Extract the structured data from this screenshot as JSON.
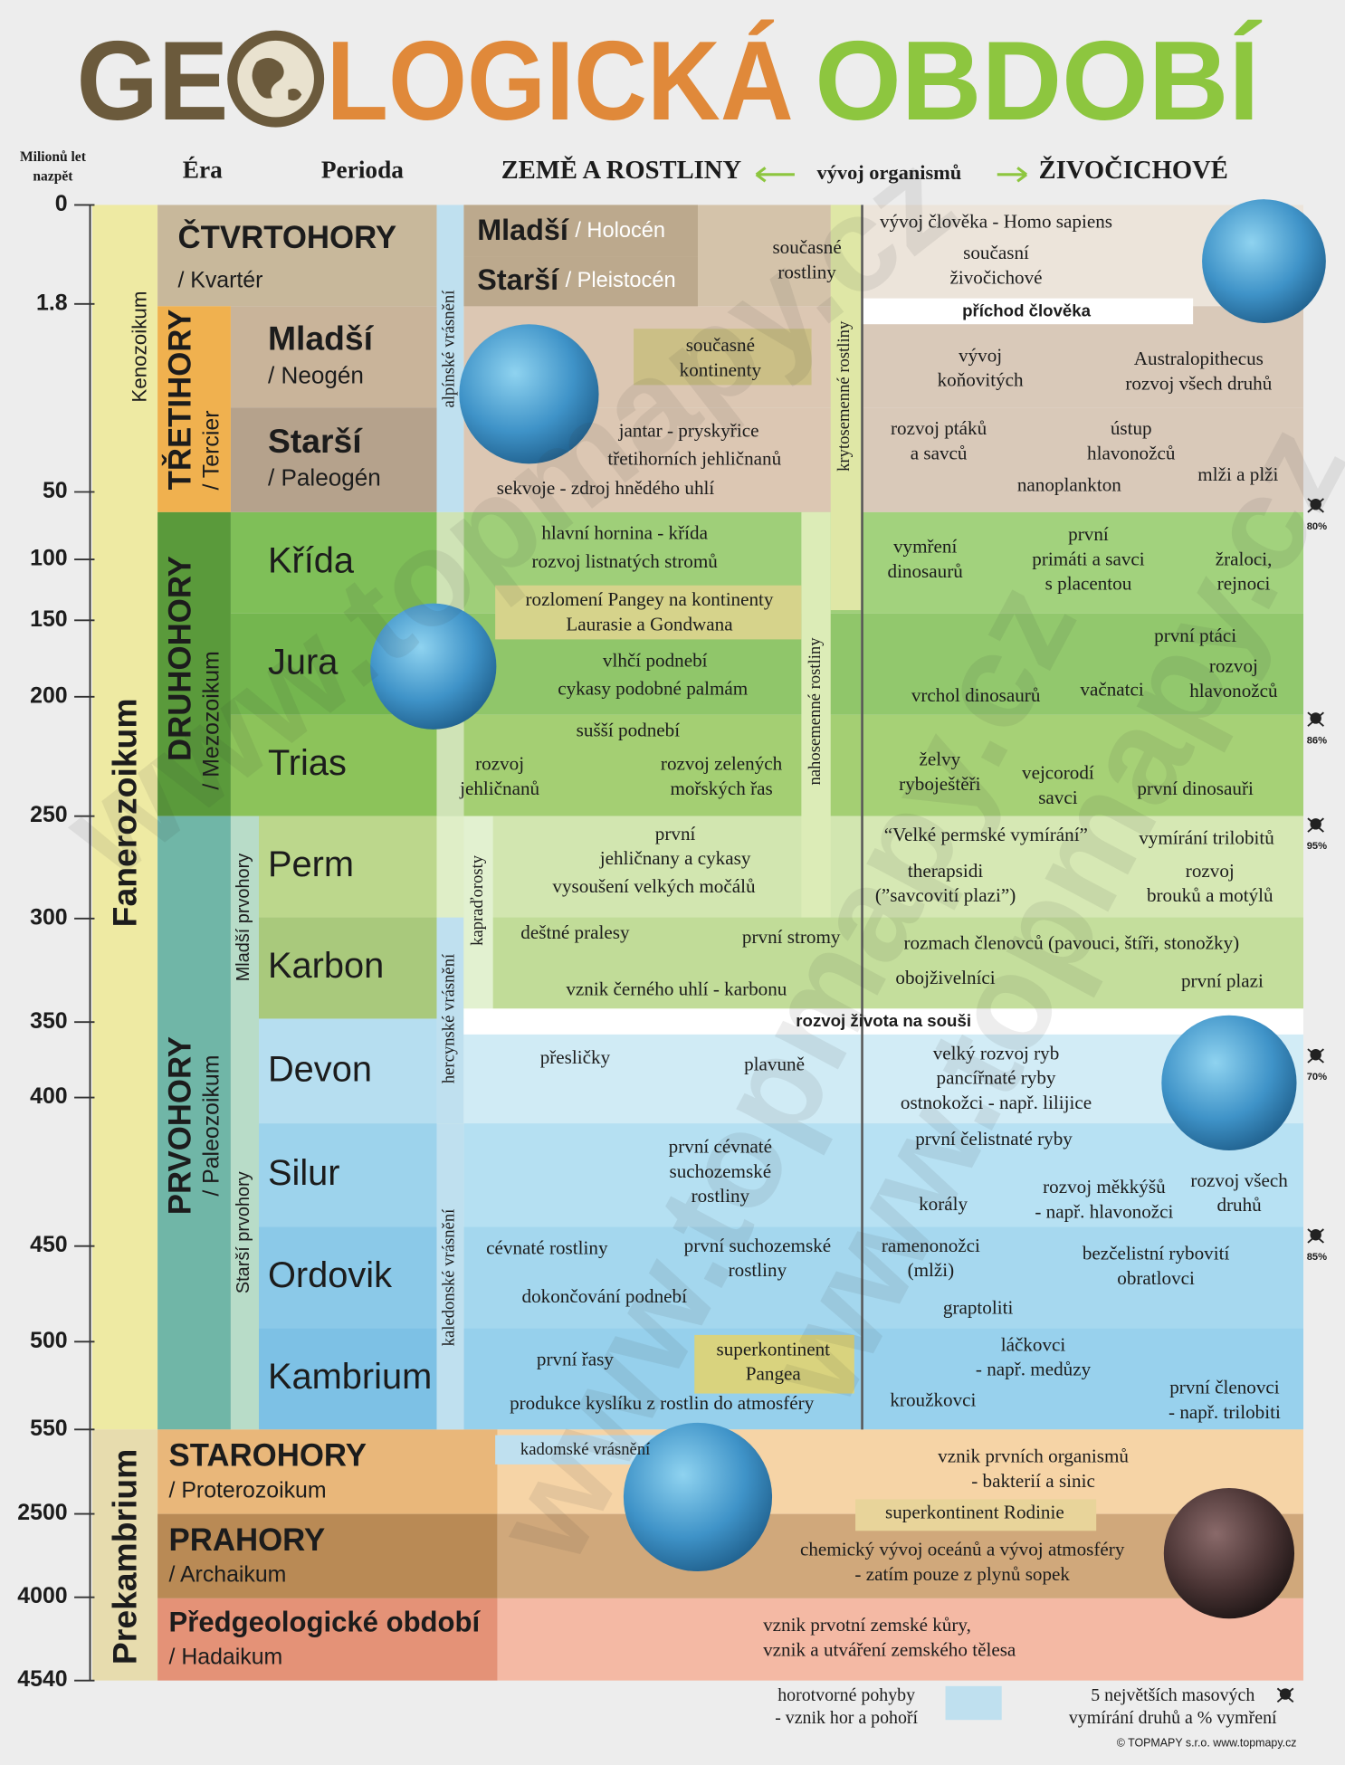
{
  "title": {
    "part1": "GE",
    "part2": "LOGICKÁ",
    "part3": "OBDOBÍ"
  },
  "headers": {
    "time": [
      "Milionů let",
      "nazpět"
    ],
    "era": "Éra",
    "period": "Perioda",
    "plants": "ZEMĚ A ROSTLINY",
    "evolution": "vývoj organismů",
    "animals": "ŽIVOČICHOVÉ"
  },
  "time_scale": [
    0,
    1.8,
    50,
    100,
    150,
    200,
    250,
    300,
    350,
    400,
    450,
    500,
    550,
    2500,
    4000,
    4540
  ],
  "eons": [
    "Fanerozoikum",
    "Prekambrium"
  ],
  "subera": "Kenozoikum",
  "eras": [
    {
      "name": "ČTVRTOHORY",
      "alt": "/ Kvartér"
    },
    {
      "name": "TŘETIHORY",
      "alt": "/ Tercier"
    },
    {
      "name": "DRUHOHORY",
      "alt": "/ Mezozoikum"
    },
    {
      "name": "PRVOHORY",
      "alt": "/ Paleozoikum"
    },
    {
      "name": "STAROHORY",
      "alt": "/ Proterozoikum"
    },
    {
      "name": "PRAHORY",
      "alt": "/ Archaikum"
    },
    {
      "name": "Předgeologické období",
      "alt": "/ Hadaikum"
    }
  ],
  "subdivisions": [
    "Mladší prvohory",
    "Starší prvohory"
  ],
  "quaternary_periods": [
    {
      "name": "Mladší",
      "alt": "/ Holocén"
    },
    {
      "name": "Starší",
      "alt": "/ Pleistocén"
    }
  ],
  "periods": [
    {
      "name": "Mladší",
      "alt": "/ Neogén"
    },
    {
      "name": "Starší",
      "alt": "/ Paleogén"
    },
    {
      "name": "Křída"
    },
    {
      "name": "Jura"
    },
    {
      "name": "Trias"
    },
    {
      "name": "Perm"
    },
    {
      "name": "Karbon"
    },
    {
      "name": "Devon"
    },
    {
      "name": "Silur"
    },
    {
      "name": "Ordovik"
    },
    {
      "name": "Kambrium"
    }
  ],
  "orogenies": [
    "alpínské vrásnění",
    "hercynské vrásnění",
    "kaledonské vrásnění",
    "kadomské vrásnění"
  ],
  "plant_groups": [
    "krytosemenné rostliny",
    "nahosemenné rostliny",
    "kapraďorosty"
  ],
  "bands": [
    "příchod člověka",
    "rozvoj života na souši"
  ],
  "plant_notes": [
    [
      "současné",
      "rostliny"
    ],
    [
      "současné",
      "kontinenty"
    ],
    [
      "jantar - pryskyřice"
    ],
    [
      "třetihorních jehličnanů"
    ],
    [
      "sekvoje - zdroj hnědého uhlí"
    ],
    [
      "hlavní hornina - křída"
    ],
    [
      "rozvoj listnatých stromů"
    ],
    [
      "rozlomení Pangey na kontinenty",
      "Laurasie a Gondwana"
    ],
    [
      "vlhčí podnebí"
    ],
    [
      "cykasy podobné palmám"
    ],
    [
      "sušší podnebí"
    ],
    [
      "rozvoj",
      "jehličnanů"
    ],
    [
      "rozvoj zelených",
      "mořských řas"
    ],
    [
      "první",
      "jehličnany a cykasy"
    ],
    [
      "vysoušení velkých močálů"
    ],
    [
      "deštné pralesy"
    ],
    [
      "první stromy"
    ],
    [
      "vznik černého uhlí - karbonu"
    ],
    [
      "přesličky"
    ],
    [
      "plavuně"
    ],
    [
      "první cévnaté",
      "suchozemské",
      "rostliny"
    ],
    [
      "cévnaté rostliny"
    ],
    [
      "první suchozemské",
      "rostliny"
    ],
    [
      "dokončování podnebí"
    ],
    [
      "první řasy"
    ],
    [
      "superkontinent",
      "Pangea"
    ],
    [
      "produkce kyslíku z rostlin do atmosféry"
    ]
  ],
  "animal_notes": [
    [
      "vývoj člověka - Homo sapiens"
    ],
    [
      "současní",
      "živočichové"
    ],
    [
      "vývoj",
      "koňovitých"
    ],
    [
      "Australopithecus",
      "rozvoj všech druhů"
    ],
    [
      "rozvoj ptáků",
      "a savců"
    ],
    [
      "ústup",
      "hlavonožců"
    ],
    [
      "nanoplankton"
    ],
    [
      "mlži a plži"
    ],
    [
      "vymření",
      "dinosaurů"
    ],
    [
      "první",
      "primáti a savci",
      "s placentou"
    ],
    [
      "žraloci,",
      "rejnoci"
    ],
    [
      "první ptáci"
    ],
    [
      "rozvoj",
      "hlavonožců"
    ],
    [
      "vrchol dinosaurů"
    ],
    [
      "vačnatci"
    ],
    [
      "želvy",
      "ryboještěři"
    ],
    [
      "vejcorodí",
      "savci"
    ],
    [
      "první dinosauři"
    ],
    [
      "“Velké permské vymírání”"
    ],
    [
      "vymírání trilobitů"
    ],
    [
      "therapsidi",
      "(”savcovití plazi”)"
    ],
    [
      "rozvoj",
      "brouků a motýlů"
    ],
    [
      "rozmach členovců (pavouci, štíři, stonožky)"
    ],
    [
      "obojživelníci"
    ],
    [
      "první plazi"
    ],
    [
      "velký rozvoj ryb",
      "pancířnaté ryby",
      "ostnokožci - např. lilijice"
    ],
    [
      "první čelistnaté ryby"
    ],
    [
      "korály"
    ],
    [
      "rozvoj měkkýšů",
      "- např. hlavonožci"
    ],
    [
      "rozvoj všech",
      "druhů"
    ],
    [
      "ramenonožci",
      "(mlži)"
    ],
    [
      "bezčelistní rybovití",
      "obratlovci"
    ],
    [
      "graptoliti"
    ],
    [
      "láčkovci",
      "- např. medůzy"
    ],
    [
      "kroužkovci"
    ],
    [
      "první členovci",
      "- např. trilobiti"
    ]
  ],
  "precambrian_notes": [
    [
      "vznik prvních organismů",
      "- bakterií a sinic"
    ],
    [
      "superkontinent Rodinie"
    ],
    [
      "chemický vývoj oceánů a vývoj atmosféry",
      "- zatím pouze z plynů sopek"
    ],
    [
      "vznik prvotní zemské kůry,",
      "vznik a utváření zemského tělesa"
    ]
  ],
  "extinctions": [
    "80%",
    "86%",
    "95%",
    "70%",
    "85%"
  ],
  "legend": {
    "mountains": [
      "horotvorné pohyby",
      "- vznik hor a pohoří"
    ],
    "extinctions": [
      "5 největších masových",
      "vymírání druhů a % vymření"
    ]
  },
  "footer": "© TOPMAPY s.r.o.  www.topmapy.cz",
  "watermark": "www.topmapy.cz"
}
